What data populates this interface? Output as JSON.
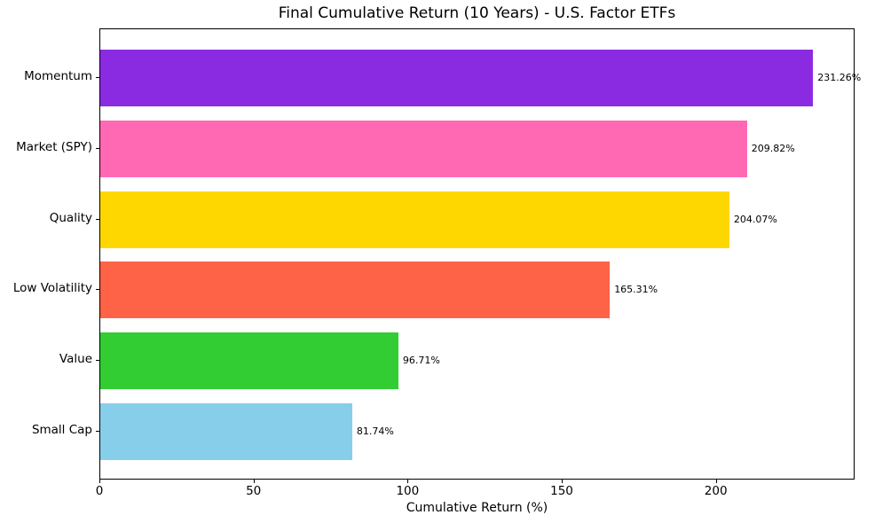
{
  "chart_data": {
    "type": "bar",
    "orientation": "horizontal",
    "title": "Final Cumulative Return (10 Years) - U.S. Factor ETFs",
    "xlabel": "Cumulative Return (%)",
    "ylabel": "",
    "categories": [
      "Momentum",
      "Market (SPY)",
      "Quality",
      "Low Volatility",
      "Value",
      "Small Cap"
    ],
    "values": [
      231.26,
      209.82,
      204.07,
      165.31,
      96.71,
      81.74
    ],
    "value_labels": [
      "231.26%",
      "209.82%",
      "204.07%",
      "165.31%",
      "96.71%",
      "81.74%"
    ],
    "bar_colors": [
      "#8A2BE2",
      "#FF69B4",
      "#FFD700",
      "#FF6347",
      "#32CD32",
      "#87CEEB"
    ],
    "xlim": [
      0,
      245
    ],
    "x_ticks": [
      0,
      50,
      100,
      150,
      200
    ],
    "grid": false,
    "legend": false,
    "background_color": "#ffffff",
    "spine_color": "#000000",
    "text_color": "#000000"
  }
}
